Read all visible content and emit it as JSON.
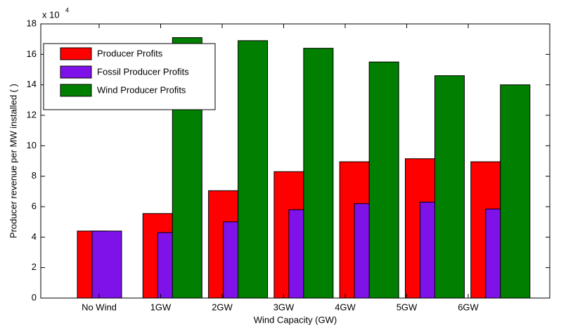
{
  "chart_data": {
    "type": "bar",
    "title_multiplier": {
      "base": "x 10",
      "exponent": "4"
    },
    "x_label": "Wind Capacity (GW)",
    "y_label": "Producer revenue per MW installed ( )",
    "categories": [
      "No Wind",
      "1GW",
      "2GW",
      "3GW",
      "4GW",
      "5GW",
      "6GW"
    ],
    "series": [
      {
        "name": "Producer Profits",
        "color": "#ff0000",
        "values": [
          4.4,
          5.55,
          7.05,
          8.3,
          8.95,
          9.15,
          8.95
        ]
      },
      {
        "name": "Fossil Producer Profits",
        "color": "#7f12e8",
        "values": [
          4.4,
          4.3,
          5.0,
          5.8,
          6.2,
          6.3,
          5.85
        ]
      },
      {
        "name": "Wind Producer Profits",
        "color": "#007f00",
        "values": [
          0,
          17.1,
          16.9,
          16.4,
          15.5,
          14.6,
          14.0
        ]
      }
    ],
    "ylim": [
      0,
      18
    ],
    "yticks": [
      0,
      2,
      4,
      6,
      8,
      10,
      12,
      14,
      16,
      18
    ],
    "legend": "upper-left"
  }
}
